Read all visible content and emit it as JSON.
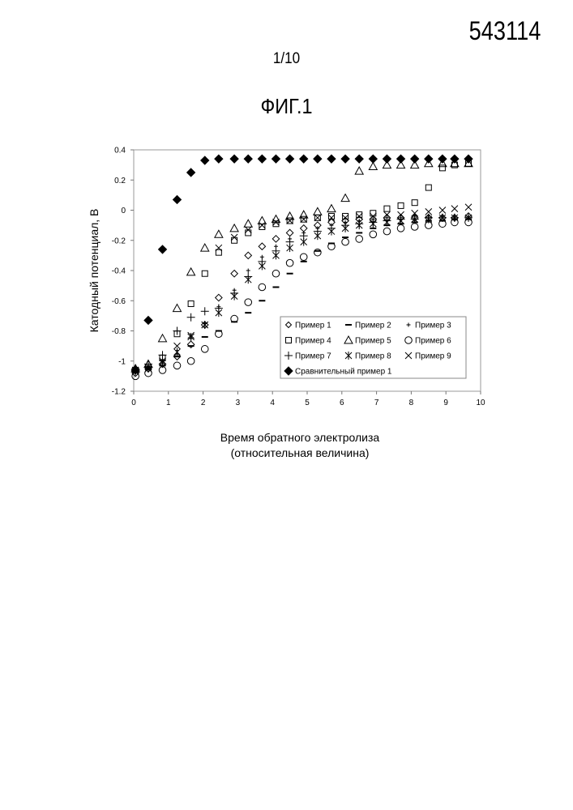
{
  "header": {
    "patent_number": "543114",
    "sheet": "1/10",
    "figure": "ФИГ.1"
  },
  "chart_data": {
    "type": "scatter",
    "xlabel": [
      "Время обратного электролиза",
      "(относительная величина)"
    ],
    "ylabel": "Катодный потенциал, В",
    "xlim": [
      0,
      10
    ],
    "ylim": [
      -1.2,
      0.4
    ],
    "xticks": [
      "0",
      "1",
      "2",
      "3",
      "4",
      "5",
      "6",
      "7",
      "8",
      "9",
      "10"
    ],
    "yticks": [
      "-1.2",
      "-1",
      "-0.8",
      "-0.6",
      "-0.4",
      "-0.2",
      "0",
      "0.2",
      "0.4"
    ],
    "grid": false,
    "legend_position": "bottom-right",
    "series": [
      {
        "name": "Пример 1",
        "marker": "diamond-open",
        "x": [
          0.05,
          0.42,
          0.83,
          1.25,
          1.65,
          2.05,
          2.45,
          2.9,
          3.3,
          3.7,
          4.1,
          4.5,
          4.9,
          5.3,
          5.7,
          6.1,
          6.5,
          6.9,
          7.3,
          7.7,
          8.1,
          8.5,
          8.9,
          9.25,
          9.65
        ],
        "y": [
          -1.08,
          -1.05,
          -1.02,
          -0.97,
          -0.89,
          -0.76,
          -0.58,
          -0.42,
          -0.3,
          -0.24,
          -0.19,
          -0.15,
          -0.12,
          -0.1,
          -0.08,
          -0.07,
          -0.06,
          -0.06,
          -0.05,
          -0.05,
          -0.05,
          -0.05,
          -0.05,
          -0.05,
          -0.04
        ]
      },
      {
        "name": "Пример 2",
        "marker": "dash",
        "x": [
          0.05,
          0.42,
          0.83,
          1.25,
          1.65,
          2.05,
          2.45,
          2.9,
          3.3,
          3.7,
          4.1,
          4.5,
          4.9,
          5.3,
          5.7,
          6.1,
          6.5,
          6.9,
          7.3,
          7.7,
          8.1,
          8.5,
          8.9,
          9.25,
          9.65
        ],
        "y": [
          -1.06,
          -1.05,
          -1.03,
          -0.97,
          -0.9,
          -0.84,
          -0.8,
          -0.74,
          -0.68,
          -0.6,
          -0.51,
          -0.42,
          -0.34,
          -0.27,
          -0.22,
          -0.18,
          -0.15,
          -0.12,
          -0.1,
          -0.09,
          -0.08,
          -0.07,
          -0.07,
          -0.06,
          -0.06
        ]
      },
      {
        "name": "Пример 3",
        "marker": "plus-small",
        "x": [
          0.05,
          0.42,
          0.83,
          1.25,
          1.65,
          2.05,
          2.45,
          2.9,
          3.3,
          3.7,
          4.1,
          4.5,
          4.9,
          5.3,
          5.7,
          6.1,
          6.5,
          6.9,
          7.3,
          7.7,
          8.1,
          8.5,
          8.9,
          9.25,
          9.65
        ],
        "y": [
          -1.07,
          -1.04,
          -0.99,
          -0.93,
          -0.85,
          -0.75,
          -0.64,
          -0.53,
          -0.4,
          -0.31,
          -0.24,
          -0.19,
          -0.15,
          -0.12,
          -0.1,
          -0.08,
          -0.07,
          -0.06,
          -0.05,
          -0.05,
          -0.04,
          -0.04,
          -0.04,
          -0.04,
          -0.04
        ]
      },
      {
        "name": "Пример 4",
        "marker": "square-open",
        "x": [
          0.05,
          0.42,
          0.83,
          1.25,
          1.65,
          2.05,
          2.45,
          2.9,
          3.3,
          3.7,
          4.1,
          4.5,
          4.9,
          5.3,
          5.7,
          6.1,
          6.5,
          6.9,
          7.3,
          7.7,
          8.1,
          8.5,
          8.9,
          9.25,
          9.65
        ],
        "y": [
          -1.06,
          -1.04,
          -0.98,
          -0.82,
          -0.62,
          -0.42,
          -0.28,
          -0.2,
          -0.15,
          -0.11,
          -0.09,
          -0.07,
          -0.06,
          -0.05,
          -0.04,
          -0.04,
          -0.03,
          -0.02,
          0.01,
          0.03,
          0.05,
          0.15,
          0.28,
          0.3,
          0.31
        ]
      },
      {
        "name": "Пример 5",
        "marker": "triangle-open",
        "x": [
          0.05,
          0.42,
          0.83,
          1.25,
          1.65,
          2.05,
          2.45,
          2.9,
          3.3,
          3.7,
          4.1,
          4.5,
          4.9,
          5.3,
          5.7,
          6.1,
          6.5,
          6.9,
          7.3,
          7.7,
          8.1,
          8.5,
          8.9,
          9.25,
          9.65
        ],
        "y": [
          -1.05,
          -1.02,
          -0.85,
          -0.65,
          -0.41,
          -0.25,
          -0.16,
          -0.12,
          -0.09,
          -0.07,
          -0.06,
          -0.04,
          -0.03,
          -0.01,
          0.01,
          0.08,
          0.26,
          0.29,
          0.3,
          0.3,
          0.3,
          0.31,
          0.31,
          0.31,
          0.31
        ]
      },
      {
        "name": "Пример 6",
        "marker": "circle-open",
        "x": [
          0.05,
          0.42,
          0.83,
          1.25,
          1.65,
          2.05,
          2.45,
          2.9,
          3.3,
          3.7,
          4.1,
          4.5,
          4.9,
          5.3,
          5.7,
          6.1,
          6.5,
          6.9,
          7.3,
          7.7,
          8.1,
          8.5,
          8.9,
          9.25,
          9.65
        ],
        "y": [
          -1.1,
          -1.08,
          -1.06,
          -1.03,
          -1.0,
          -0.92,
          -0.82,
          -0.72,
          -0.61,
          -0.51,
          -0.42,
          -0.35,
          -0.31,
          -0.28,
          -0.24,
          -0.21,
          -0.19,
          -0.16,
          -0.14,
          -0.12,
          -0.11,
          -0.1,
          -0.09,
          -0.08,
          -0.08
        ]
      },
      {
        "name": "Пример 7",
        "marker": "plus",
        "x": [
          0.05,
          0.42,
          0.83,
          1.25,
          1.65,
          2.05,
          2.45,
          2.9,
          3.3,
          3.7,
          4.1,
          4.5,
          4.9,
          5.3,
          5.7,
          6.1,
          6.5,
          6.9,
          7.3,
          7.7,
          8.1,
          8.5,
          8.9,
          9.25,
          9.65
        ],
        "y": [
          -1.05,
          -1.02,
          -0.96,
          -0.8,
          -0.71,
          -0.67,
          -0.65,
          -0.55,
          -0.44,
          -0.34,
          -0.27,
          -0.21,
          -0.17,
          -0.14,
          -0.12,
          -0.1,
          -0.09,
          -0.08,
          -0.07,
          -0.06,
          -0.06,
          -0.05,
          -0.05,
          -0.05,
          -0.05
        ]
      },
      {
        "name": "Пример 8",
        "marker": "asterisk",
        "x": [
          0.05,
          0.42,
          0.83,
          1.25,
          1.65,
          2.05,
          2.45,
          2.9,
          3.3,
          3.7,
          4.1,
          4.5,
          4.9,
          5.3,
          5.7,
          6.1,
          6.5,
          6.9,
          7.3,
          7.7,
          8.1,
          8.5,
          8.9,
          9.25,
          9.65
        ],
        "y": [
          -1.07,
          -1.05,
          -1.01,
          -0.94,
          -0.84,
          -0.76,
          -0.68,
          -0.57,
          -0.46,
          -0.37,
          -0.3,
          -0.25,
          -0.21,
          -0.17,
          -0.14,
          -0.12,
          -0.1,
          -0.09,
          -0.08,
          -0.07,
          -0.06,
          -0.06,
          -0.05,
          -0.05,
          -0.05
        ]
      },
      {
        "name": "Пример 9",
        "marker": "cross",
        "x": [
          0.05,
          0.42,
          0.83,
          1.25,
          1.65,
          2.05,
          2.45,
          2.9,
          3.3,
          3.7,
          4.1,
          4.5,
          4.9,
          5.3,
          5.7,
          6.1,
          6.5,
          6.9,
          7.3,
          7.7,
          8.1,
          8.5,
          8.9,
          9.25,
          9.65
        ],
        "y": [
          -1.06,
          -1.04,
          -1.0,
          -0.9,
          -0.83,
          -0.76,
          -0.25,
          -0.18,
          -0.13,
          -0.1,
          -0.08,
          -0.07,
          -0.06,
          -0.05,
          -0.05,
          -0.05,
          -0.04,
          -0.04,
          -0.03,
          -0.03,
          -0.02,
          -0.01,
          0.0,
          0.01,
          0.02
        ]
      },
      {
        "name": "Сравнительный пример 1",
        "marker": "diamond-filled",
        "x": [
          0.05,
          0.42,
          0.83,
          1.25,
          1.65,
          2.05,
          2.45,
          2.9,
          3.3,
          3.7,
          4.1,
          4.5,
          4.9,
          5.3,
          5.7,
          6.1,
          6.5,
          6.9,
          7.3,
          7.7,
          8.1,
          8.5,
          8.9,
          9.25,
          9.65
        ],
        "y": [
          -1.06,
          -0.73,
          -0.26,
          0.07,
          0.25,
          0.33,
          0.34,
          0.34,
          0.34,
          0.34,
          0.34,
          0.34,
          0.34,
          0.34,
          0.34,
          0.34,
          0.34,
          0.34,
          0.34,
          0.34,
          0.34,
          0.34,
          0.34,
          0.34,
          0.34
        ]
      }
    ]
  }
}
